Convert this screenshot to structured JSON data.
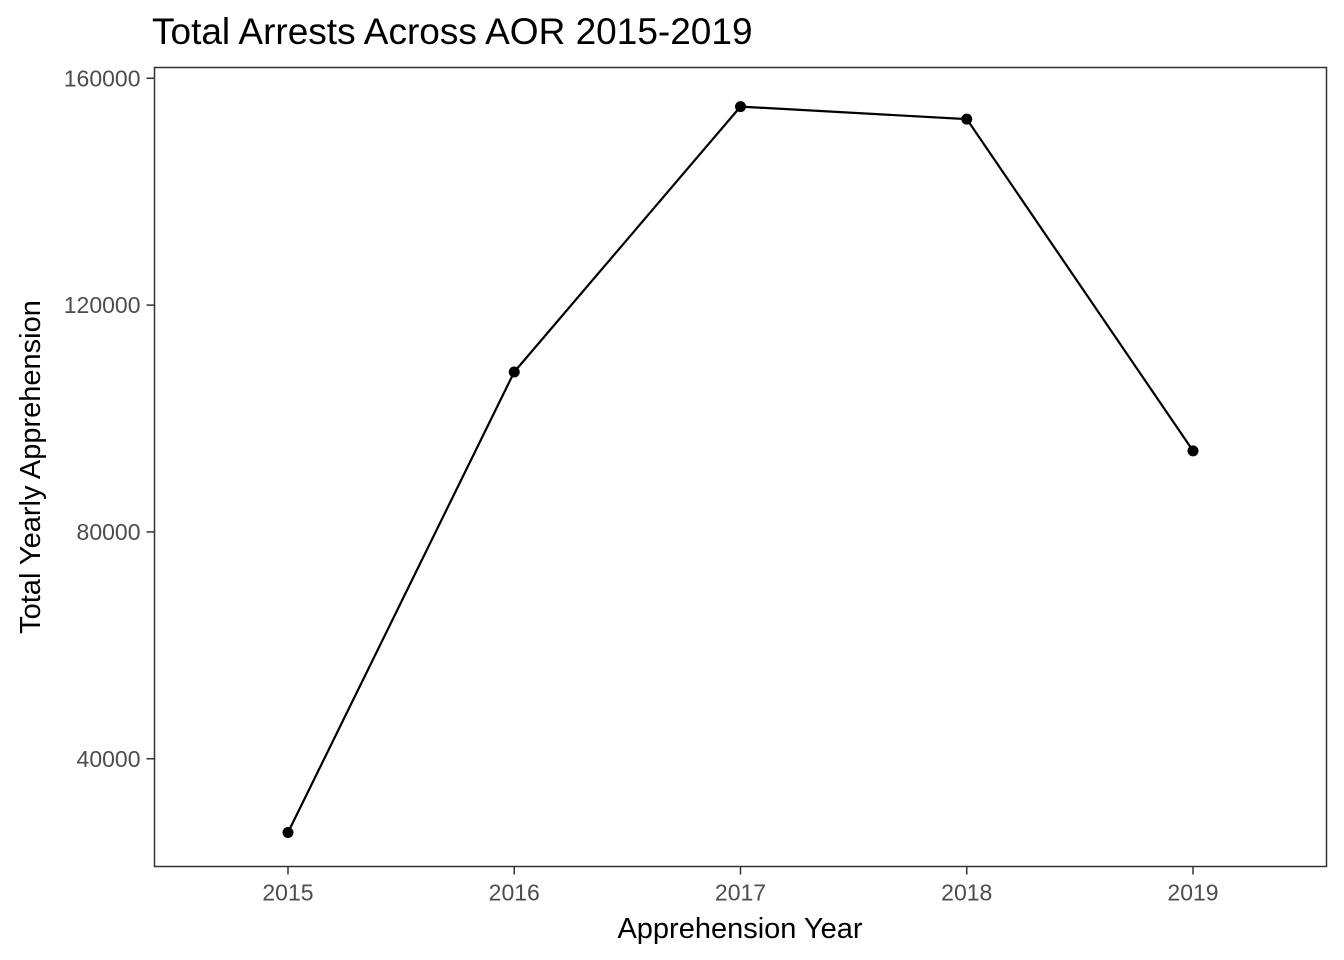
{
  "chart_data": {
    "type": "line",
    "title": "Total Arrests Across AOR 2015-2019",
    "xlabel": "Apprehension Year",
    "ylabel": "Total Yearly Apprehension",
    "x": [
      2015,
      2016,
      2017,
      2018,
      2019
    ],
    "series": [
      {
        "values": [
          27000,
          108200,
          155000,
          152800,
          94300
        ]
      }
    ],
    "xlim": [
      2014.41,
      2019.59
    ],
    "ylim": [
      21000,
      161900
    ],
    "x_ticks": [
      "2015",
      "2016",
      "2017",
      "2018",
      "2019"
    ],
    "y_ticks": [
      "40000",
      "80000",
      "120000",
      "160000"
    ],
    "grid": false,
    "legend": "none",
    "line_color": "#000000",
    "point_color": "#000000"
  }
}
